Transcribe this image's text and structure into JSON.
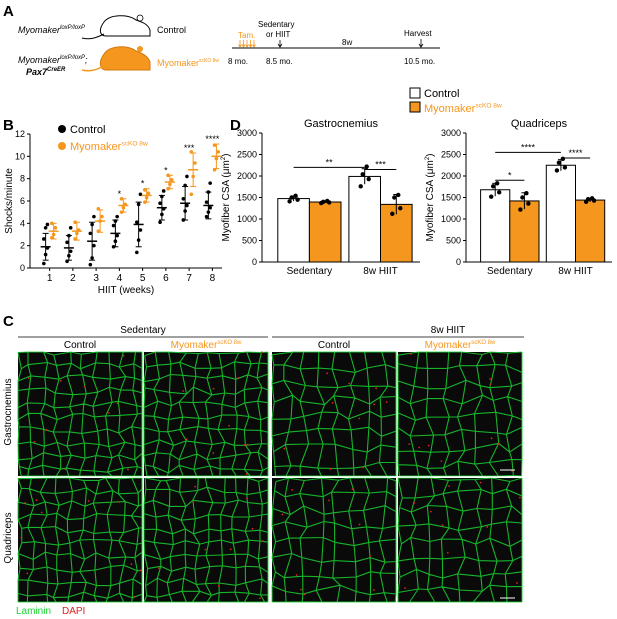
{
  "panels": {
    "A": "A",
    "B": "B",
    "C": "C",
    "D": "D"
  },
  "colors": {
    "control": "#000000",
    "ko": "#f5961e",
    "laminin": "#19d230",
    "dapi": "#e02020"
  },
  "panelA": {
    "genotype1_main": "Myomaker",
    "genotype1_sup": "loxP/loxP",
    "genotype1_label": "Control",
    "genotype2_main": "Myomaker",
    "genotype2_sup": "loxP/loxP",
    "genotype2_sep": ";",
    "genotype2_line2": "Pax7",
    "genotype2_line2_sup": "CreER",
    "genotype2_label_main": "Myomaker",
    "genotype2_label_sup": "scKO 8w",
    "timeline": {
      "tam": "Tam.",
      "sedentary": "Sedentary",
      "or_hiit": "or HIIT",
      "harvest": "Harvest",
      "duration": "8w",
      "t1": "8 mo.",
      "t2": "8.5 mo.",
      "t3": "10.5 mo."
    }
  },
  "chart_data": [
    {
      "panel": "B",
      "type": "scatter",
      "ylabel": "Shocks/minute",
      "xlabel": "HIIT (weeks)",
      "ylim": [
        0,
        12
      ],
      "yticks": [
        "0",
        "2",
        "4",
        "6",
        "8",
        "10",
        "12"
      ],
      "categories": [
        "1",
        "2",
        "3",
        "4",
        "5",
        "6",
        "7",
        "8"
      ],
      "legend": [
        {
          "name": "Control",
          "main": "Control",
          "sup": ""
        },
        {
          "name": "Myomaker scKO 8w",
          "main": "Myomaker",
          "sup": "scKO 8w"
        }
      ],
      "significance": [
        "",
        "",
        "",
        "*",
        "*",
        "*",
        "***",
        "****"
      ],
      "series": [
        {
          "name": "Control",
          "mean": [
            1.9,
            1.8,
            2.4,
            3.1,
            3.9,
            5.4,
            5.8,
            5.6
          ],
          "sd": [
            1.2,
            1.1,
            1.7,
            1.2,
            2.0,
            1.1,
            1.5,
            1.2
          ],
          "points": [
            [
              0.4,
              1.2,
              1.8,
              2.6,
              3.6,
              3.9
            ],
            [
              0.6,
              1.1,
              1.5,
              2.3,
              2.9,
              3.6
            ],
            [
              0.3,
              0.9,
              2.0,
              3.1,
              3.9,
              4.6
            ],
            [
              1.9,
              2.4,
              2.9,
              3.8,
              4.2,
              4.6
            ],
            [
              1.4,
              2.5,
              3.4,
              4.1,
              5.7,
              6.6
            ],
            [
              4.1,
              4.8,
              5.3,
              5.8,
              6.4,
              6.9
            ],
            [
              4.3,
              5.1,
              5.6,
              6.2,
              7.4,
              8.2
            ],
            [
              4.6,
              5.0,
              5.4,
              5.9,
              6.8,
              7.6
            ]
          ]
        },
        {
          "name": "Myomaker scKO 8w",
          "mean": [
            3.3,
            3.3,
            4.2,
            5.6,
            6.5,
            7.7,
            8.8,
            10.0
          ],
          "sd": [
            0.7,
            0.8,
            1.0,
            0.6,
            0.6,
            0.6,
            1.5,
            1.1
          ],
          "points": [
            [
              2.7,
              3.0,
              3.6,
              4.0
            ],
            [
              2.6,
              3.1,
              3.4,
              4.1
            ],
            [
              3.3,
              4.2,
              4.6,
              5.3
            ],
            [
              5.0,
              5.4,
              5.7,
              6.2
            ],
            [
              5.9,
              6.3,
              6.7,
              7.0
            ],
            [
              7.1,
              7.5,
              7.9,
              8.3
            ],
            [
              6.6,
              8.2,
              9.4,
              10.4
            ],
            [
              8.8,
              9.8,
              10.4,
              11.0
            ]
          ]
        }
      ]
    },
    {
      "panel": "D",
      "type": "bar",
      "title": "Gastrocnemius",
      "ylabel_main": "Myofiber CSA (",
      "ylabel_unit": "μm",
      "ylabel_sup": "2",
      "ylabel_close": ")",
      "ylim": [
        0,
        3000
      ],
      "yticks": [
        "0",
        "500",
        "1000",
        "1500",
        "2000",
        "2500",
        "3000"
      ],
      "categories": [
        "Sedentary",
        "8w HIIT"
      ],
      "series": [
        {
          "name": "Control",
          "values": [
            1475,
            1990
          ],
          "sd": [
            60,
            180
          ],
          "points": [
            [
              1410,
              1450,
              1500,
              1540
            ],
            [
              1760,
              1930,
              2040,
              2220
            ]
          ]
        },
        {
          "name": "Myomaker scKO 8w",
          "values": [
            1395,
            1340
          ],
          "sd": [
            25,
            230
          ],
          "points": [
            [
              1370,
              1385,
              1400,
              1420
            ],
            [
              1120,
              1250,
              1500,
              1560
            ]
          ]
        }
      ],
      "sig_lines": [
        {
          "label": "**",
          "from": "Sedentary-Control",
          "to": "8w HIIT-Control",
          "y": 2200
        },
        {
          "label": "***",
          "from": "8w HIIT-Control",
          "to": "8w HIIT-KO",
          "y": 2150
        }
      ]
    },
    {
      "panel": "D",
      "type": "bar",
      "title": "Quadriceps",
      "ylabel_main": "Myofiber CSA (",
      "ylabel_unit": "μm",
      "ylabel_sup": "2",
      "ylabel_close": ")",
      "ylim": [
        0,
        3000
      ],
      "yticks": [
        "0",
        "500",
        "1000",
        "1500",
        "2000",
        "2500",
        "3000"
      ],
      "categories": [
        "Sedentary",
        "8w HIIT"
      ],
      "series": [
        {
          "name": "Control",
          "values": [
            1680,
            2250
          ],
          "sd": [
            150,
            130
          ],
          "points": [
            [
              1520,
              1620,
              1760,
              1830
            ],
            [
              2130,
              2200,
              2310,
              2400
            ]
          ]
        },
        {
          "name": "Myomaker scKO 8w",
          "values": [
            1420,
            1440
          ],
          "sd": [
            190,
            45
          ],
          "points": [
            [
              1220,
              1360,
              1500,
              1600
            ],
            [
              1400,
              1430,
              1460,
              1480
            ]
          ]
        }
      ],
      "sig_lines": [
        {
          "label": "*",
          "from": "Sedentary-Control",
          "to": "Sedentary-KO",
          "y": 1900
        },
        {
          "label": "****",
          "from": "Sedentary-Control",
          "to": "8w HIIT-Control",
          "y": 2550
        },
        {
          "label": "****",
          "from": "8w HIIT-Control",
          "to": "8w HIIT-KO",
          "y": 2420
        }
      ]
    }
  ],
  "legendD": [
    {
      "main": "Control",
      "sup": ""
    },
    {
      "main": "Myomaker",
      "sup": "scKO 8w"
    }
  ],
  "panelC": {
    "group1": "Sedentary",
    "group2": "8w HIIT",
    "cols": [
      {
        "main": "Control",
        "sup": ""
      },
      {
        "main": "Myomaker",
        "sup": "scKO 8w"
      },
      {
        "main": "Control",
        "sup": ""
      },
      {
        "main": "Myomaker",
        "sup": "scKO 8w"
      }
    ],
    "rows": [
      "Gastrocnemius",
      "Quadriceps"
    ],
    "stain1": "Laminin",
    "stain2": "DAPI"
  }
}
